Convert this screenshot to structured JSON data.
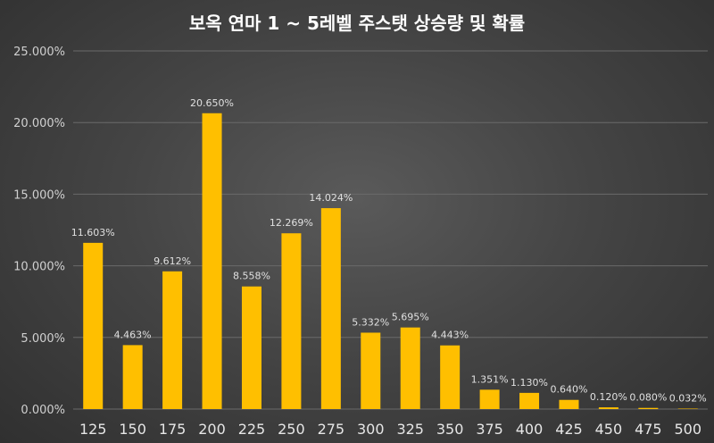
{
  "chart_data": {
    "type": "bar",
    "title": "보옥 연마 1 ~ 5레벨 주스탯 상승량 및 확률",
    "xlabel": "",
    "ylabel": "",
    "ylim": [
      0,
      25
    ],
    "yticks": [
      "0.000%",
      "5.000%",
      "10.000%",
      "15.000%",
      "20.000%",
      "25.000%"
    ],
    "grid": true,
    "categories": [
      "125",
      "150",
      "175",
      "200",
      "225",
      "250",
      "275",
      "300",
      "325",
      "350",
      "375",
      "400",
      "425",
      "450",
      "475",
      "500"
    ],
    "values": [
      11.603,
      4.463,
      9.612,
      20.65,
      8.558,
      12.269,
      14.024,
      5.332,
      5.695,
      4.443,
      1.351,
      1.13,
      0.64,
      0.12,
      0.08,
      0.032
    ],
    "data_labels": [
      "11.603%",
      "4.463%",
      "9.612%",
      "20.650%",
      "8.558%",
      "12.269%",
      "14.024%",
      "5.332%",
      "5.695%",
      "4.443%",
      "1.351%",
      "1.130%",
      "0.640%",
      "0.120%",
      "0.080%",
      "0.032%"
    ],
    "bar_color": "#ffbf00"
  }
}
